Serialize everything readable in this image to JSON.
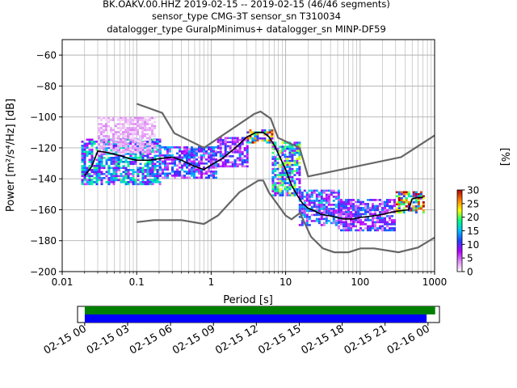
{
  "title_lines": [
    "BK.OAKV.00.HHZ   2019-02-15 -- 2019-02-15  (46/46 segments)",
    "sensor_type CMG-3T sensor_sn T310034",
    "datalogger_type GuralpMinimus+ datalogger_sn MINP-DF59"
  ],
  "colorbar": {
    "label": "[%]",
    "ticks": [
      0,
      5,
      10,
      15,
      20,
      25,
      30
    ],
    "range": [
      0,
      30
    ],
    "stops": [
      "#ffffff",
      "#e08ef4",
      "#b400ff",
      "#2040ff",
      "#00c0ff",
      "#00ff80",
      "#ffff00",
      "#ff8000",
      "#b00000"
    ]
  },
  "colors": {
    "model_line": "#666666",
    "mode_line": "#000000",
    "grid": "#b0b0b0",
    "coverage_green": "#008000",
    "coverage_blue": "#0000ff"
  },
  "chart_data": [
    {
      "type": "heatmap",
      "name": "ppsd",
      "xlabel": "Period [s]",
      "ylabel": "Power [m²/s⁴/Hz] [dB]",
      "xscale": "log",
      "xlim": [
        0.01,
        1000
      ],
      "ylim": [
        -200,
        -50
      ],
      "xticks": [
        {
          "value": 0.01,
          "label": "0.01"
        },
        {
          "value": 0.1,
          "label": "0.1"
        },
        {
          "value": 1,
          "label": "1"
        },
        {
          "value": 10,
          "label": "10"
        },
        {
          "value": 100,
          "label": "100"
        },
        {
          "value": 1000,
          "label": "1000"
        }
      ],
      "yticks": [
        -60,
        -80,
        -100,
        -120,
        -140,
        -160,
        -180,
        -200
      ],
      "grid": true,
      "high_noise_model": {
        "x": [
          0.1,
          0.22,
          0.32,
          0.8,
          3.8,
          4.6,
          6.3,
          7.9,
          15.4,
          20,
          354.8,
          1000
        ],
        "y": [
          -91.5,
          -97.4,
          -110.5,
          -120,
          -98,
          -96.5,
          -101,
          -113.5,
          -120,
          -138.5,
          -126,
          -112
        ]
      },
      "low_noise_model": {
        "x": [
          0.1,
          0.17,
          0.4,
          0.8,
          1.24,
          2.4,
          4.3,
          5,
          6,
          10,
          12,
          15.6,
          21.9,
          31.6,
          45,
          70,
          101,
          154,
          328,
          600,
          1000
        ],
        "y": [
          -168,
          -166.7,
          -166.7,
          -169.2,
          -163.7,
          -148.6,
          -141.1,
          -141.1,
          -149,
          -163.8,
          -166.2,
          -162.1,
          -177.5,
          -185,
          -187.5,
          -187.5,
          -185,
          -185,
          -187.5,
          -184.4,
          -178
        ]
      },
      "mode_curve": {
        "x": [
          0.02,
          0.025,
          0.03,
          0.04,
          0.06,
          0.08,
          0.1,
          0.15,
          0.2,
          0.3,
          0.4,
          0.6,
          0.8,
          1,
          1.4,
          2,
          3,
          4,
          5,
          6,
          7,
          8,
          10,
          12,
          14,
          17,
          20,
          25,
          30,
          40,
          60,
          80,
          100,
          150,
          200,
          300,
          450,
          500,
          600,
          700
        ],
        "y": [
          -138,
          -132,
          -122,
          -123,
          -125,
          -127,
          -128,
          -128,
          -127,
          -126,
          -128,
          -132,
          -134,
          -131,
          -127,
          -121,
          -113,
          -110,
          -110,
          -113,
          -118,
          -124,
          -134,
          -144,
          -150,
          -156,
          -159,
          -161,
          -163,
          -164,
          -166,
          -166,
          -165,
          -164,
          -163,
          -161,
          -160,
          -153,
          -152,
          -152
        ]
      },
      "density_regions": [
        {
          "x": [
            0.018,
            0.2
          ],
          "y": [
            -143,
            -114
          ],
          "level": 14
        },
        {
          "x": [
            0.03,
            0.18
          ],
          "y": [
            -123,
            -100
          ],
          "level": 3
        },
        {
          "x": [
            0.2,
            1.2
          ],
          "y": [
            -139,
            -119
          ],
          "level": 11
        },
        {
          "x": [
            1.2,
            3
          ],
          "y": [
            -132,
            -113
          ],
          "level": 10
        },
        {
          "x": [
            3,
            6.5
          ],
          "y": [
            -116,
            -108
          ],
          "level": 22
        },
        {
          "x": [
            6.5,
            15
          ],
          "y": [
            -150,
            -116
          ],
          "level": 16
        },
        {
          "x": [
            15,
            50
          ],
          "y": [
            -170,
            -147
          ],
          "level": 12
        },
        {
          "x": [
            50,
            300
          ],
          "y": [
            -173,
            -153
          ],
          "level": 10
        },
        {
          "x": [
            300,
            700
          ],
          "y": [
            -162,
            -148
          ],
          "level": 24
        }
      ]
    },
    {
      "type": "bar",
      "name": "coverage",
      "xticks": [
        "02-15 00",
        "02-15 03",
        "02-15 06",
        "02-15 09",
        "02-15 12",
        "02-15 15",
        "02-15 18",
        "02-15 21",
        "02-16 00"
      ],
      "xlim_hours": [
        -0.5,
        24.8
      ],
      "bars": [
        {
          "name": "processed",
          "start_hour": 0,
          "end_hour": 24.5,
          "color": "green"
        },
        {
          "name": "data",
          "start_hour": 0,
          "end_hour": 23.9,
          "color": "blue"
        }
      ]
    }
  ]
}
